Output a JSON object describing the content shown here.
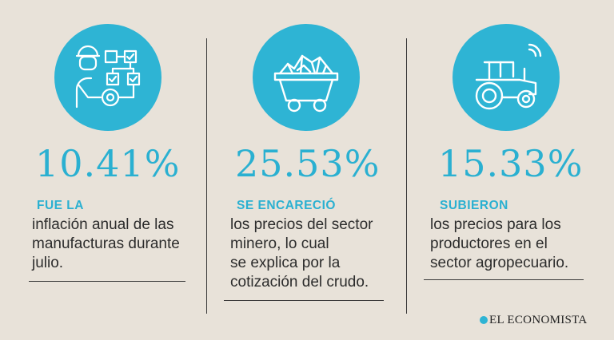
{
  "stats": [
    {
      "icon": "worker-workflow-icon",
      "value": "10.41%",
      "heading": "FUE LA",
      "lines": [
        "inflación anual de las",
        "manufacturas durante",
        "julio."
      ]
    },
    {
      "icon": "mine-cart-icon",
      "value": "25.53%",
      "heading": "SE ENCARECIÓ",
      "lines": [
        "los precios del sector",
        "minero, lo cual",
        "se explica por la",
        "cotización del crudo."
      ]
    },
    {
      "icon": "tractor-icon",
      "value": "15.33%",
      "heading": "SUBIERON",
      "lines": [
        "los precios para los",
        "productores en el",
        "sector agropecuario."
      ]
    }
  ],
  "brand": {
    "name": "EL ECONOMISTA"
  },
  "colors": {
    "accent": "#2eb4d4",
    "background": "#e8e2d9",
    "text": "#2c2c2c"
  }
}
